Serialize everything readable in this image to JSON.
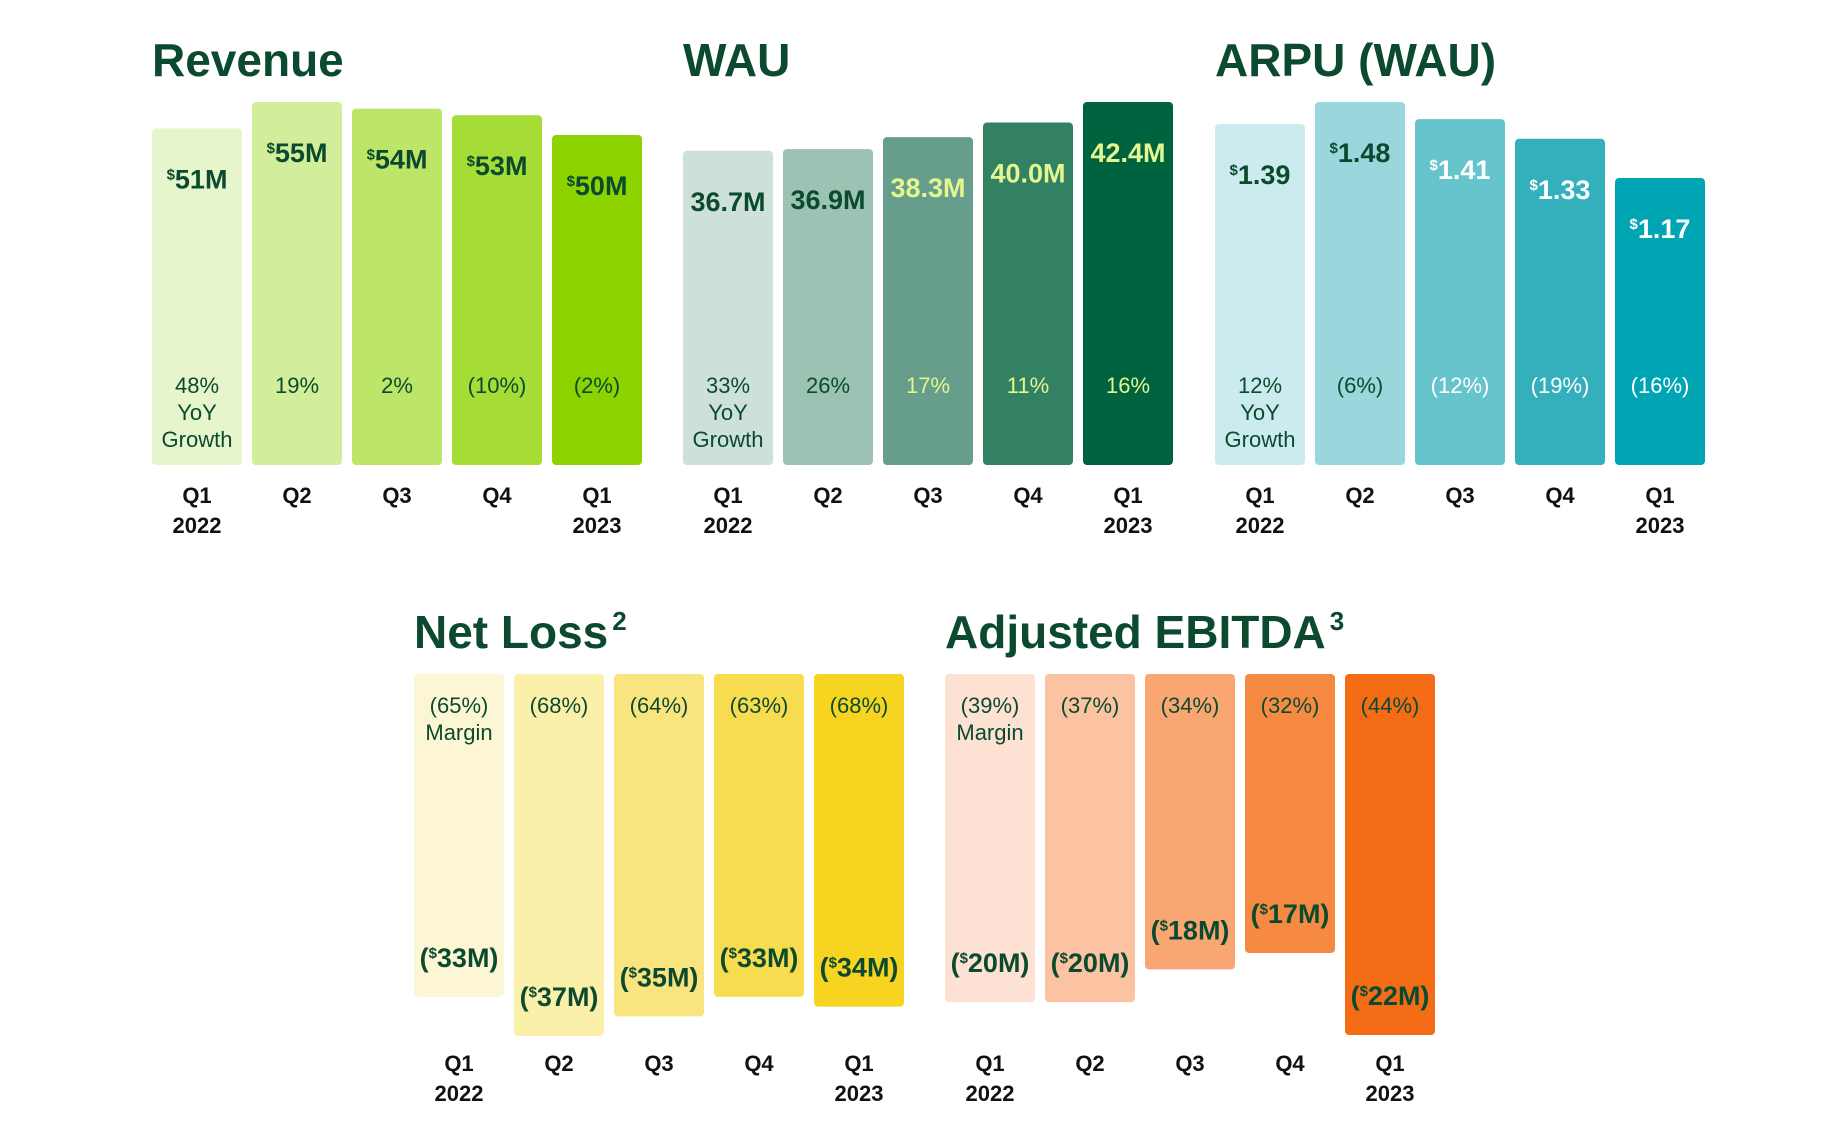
{
  "chart_data": [
    {
      "id": "revenue",
      "type": "bar",
      "title": "Revenue",
      "title_sup": "",
      "categories": [
        [
          "Q1",
          "2022"
        ],
        [
          "Q2",
          ""
        ],
        [
          "Q3",
          ""
        ],
        [
          "Q4",
          ""
        ],
        [
          "Q1",
          "2023"
        ]
      ],
      "series": [
        {
          "name": "Revenue ($M)",
          "values": [
            51,
            55,
            54,
            53,
            50
          ]
        }
      ],
      "value_labels": [
        [
          "$",
          "51M"
        ],
        [
          "$",
          "55M"
        ],
        [
          "$",
          "54M"
        ],
        [
          "$",
          "53M"
        ],
        [
          "$",
          "50M"
        ]
      ],
      "secondary_labels": [
        [
          "48%",
          "YoY",
          "Growth"
        ],
        [
          "19%"
        ],
        [
          "2%"
        ],
        [
          "(10%)"
        ],
        [
          "(2%)"
        ]
      ],
      "secondary_name": "YoY Growth",
      "colors": [
        "#e6f5cc",
        "#d3ee9a",
        "#bde567",
        "#a6dc36",
        "#8dd300"
      ],
      "label_colors": [
        "#0b4a2f",
        "#0b4a2f",
        "#0b4a2f",
        "#0b4a2f",
        "#0b4a2f"
      ],
      "pct_colors": [
        "#0b4a2f",
        "#0b4a2f",
        "#0b4a2f",
        "#0b4a2f",
        "#0b4a2f"
      ],
      "ylim": [
        0,
        55
      ]
    },
    {
      "id": "wau",
      "type": "bar",
      "title": "WAU",
      "title_sup": "",
      "categories": [
        [
          "Q1",
          "2022"
        ],
        [
          "Q2",
          ""
        ],
        [
          "Q3",
          ""
        ],
        [
          "Q4",
          ""
        ],
        [
          "Q1",
          "2023"
        ]
      ],
      "series": [
        {
          "name": "WAU (M)",
          "values": [
            36.7,
            36.9,
            38.3,
            40.0,
            42.4
          ]
        }
      ],
      "value_labels": [
        [
          "",
          "36.7M"
        ],
        [
          "",
          "36.9M"
        ],
        [
          "",
          "38.3M"
        ],
        [
          "",
          "40.0M"
        ],
        [
          "",
          "42.4M"
        ]
      ],
      "secondary_labels": [
        [
          "33%",
          "YoY",
          "Growth"
        ],
        [
          "26%"
        ],
        [
          "17%"
        ],
        [
          "11%"
        ],
        [
          "16%"
        ]
      ],
      "secondary_name": "YoY Growth",
      "colors": [
        "#cde1da",
        "#9bc2b3",
        "#669e8b",
        "#338163",
        "#00633f"
      ],
      "label_colors": [
        "#0b4a2f",
        "#0b4a2f",
        "#e3f68f",
        "#e3f68f",
        "#e3f68f"
      ],
      "pct_colors": [
        "#0b4a2f",
        "#0b4a2f",
        "#e3f68f",
        "#e3f68f",
        "#e3f68f"
      ],
      "ylim": [
        0,
        42.4
      ]
    },
    {
      "id": "arpu",
      "type": "bar",
      "title": "ARPU (WAU)",
      "title_sup": "",
      "categories": [
        [
          "Q1",
          "2022"
        ],
        [
          "Q2",
          ""
        ],
        [
          "Q3",
          ""
        ],
        [
          "Q4",
          ""
        ],
        [
          "Q1",
          "2023"
        ]
      ],
      "series": [
        {
          "name": "ARPU ($)",
          "values": [
            1.39,
            1.48,
            1.41,
            1.33,
            1.17
          ]
        }
      ],
      "value_labels": [
        [
          "$",
          "1.39"
        ],
        [
          "$",
          "1.48"
        ],
        [
          "$",
          "1.41"
        ],
        [
          "$",
          "1.33"
        ],
        [
          "$",
          "1.17"
        ]
      ],
      "secondary_labels": [
        [
          "12%",
          "YoY",
          "Growth"
        ],
        [
          "(6%)"
        ],
        [
          "(12%)"
        ],
        [
          "(19%)"
        ],
        [
          "(16%)"
        ]
      ],
      "secondary_name": "YoY Growth",
      "colors": [
        "#ccebee",
        "#99d7dd",
        "#66c4cd",
        "#33b0bc",
        "#00a5b3"
      ],
      "label_colors": [
        "#0b4a2f",
        "#0b4a2f",
        "#ffffff",
        "#ffffff",
        "#ffffff"
      ],
      "pct_colors": [
        "#0b4a2f",
        "#0b4a2f",
        "#ffffff",
        "#ffffff",
        "#ffffff"
      ],
      "ylim": [
        0,
        1.48
      ]
    },
    {
      "id": "net_loss",
      "type": "bar",
      "title": "Net Loss",
      "title_sup": "2",
      "categories": [
        [
          "Q1",
          "2022"
        ],
        [
          "Q2",
          ""
        ],
        [
          "Q3",
          ""
        ],
        [
          "Q4",
          ""
        ],
        [
          "Q1",
          "2023"
        ]
      ],
      "series": [
        {
          "name": "Net Loss ($M)",
          "values": [
            -33,
            -37,
            -35,
            -33,
            -34
          ]
        }
      ],
      "value_labels": [
        [
          "($",
          "33M)"
        ],
        [
          "($",
          "37M)"
        ],
        [
          "($",
          "35M)"
        ],
        [
          "($",
          "33M)"
        ],
        [
          "($",
          "34M)"
        ]
      ],
      "secondary_labels": [
        [
          "(65%)",
          "Margin"
        ],
        [
          "(68%)"
        ],
        [
          "(64%)"
        ],
        [
          "(63%)"
        ],
        [
          "(68%)"
        ]
      ],
      "secondary_name": "Margin",
      "colors": [
        "#fcf6d4",
        "#fbf0aa",
        "#f9e47f",
        "#f8dc4f",
        "#f6d41f"
      ],
      "label_colors": [
        "#0b4a2f",
        "#0b4a2f",
        "#0b4a2f",
        "#0b4a2f",
        "#0b4a2f"
      ],
      "pct_colors": [
        "#0b4a2f",
        "#0b4a2f",
        "#0b4a2f",
        "#0b4a2f",
        "#0b4a2f"
      ],
      "ylim": [
        -37,
        0
      ]
    },
    {
      "id": "adj_ebitda",
      "type": "bar",
      "title": "Adjusted EBITDA",
      "title_sup": "3",
      "categories": [
        [
          "Q1",
          "2022"
        ],
        [
          "Q2",
          ""
        ],
        [
          "Q3",
          ""
        ],
        [
          "Q4",
          ""
        ],
        [
          "Q1",
          "2023"
        ]
      ],
      "series": [
        {
          "name": "Adjusted EBITDA ($M)",
          "values": [
            -20,
            -20,
            -18,
            -17,
            -22
          ]
        }
      ],
      "value_labels": [
        [
          "($",
          "20M)"
        ],
        [
          "($",
          "20M)"
        ],
        [
          "($",
          "18M)"
        ],
        [
          "($",
          "17M)"
        ],
        [
          "($",
          "22M)"
        ]
      ],
      "secondary_labels": [
        [
          "(39%)",
          "Margin"
        ],
        [
          "(37%)"
        ],
        [
          "(34%)"
        ],
        [
          "(32%)"
        ],
        [
          "(44%)"
        ]
      ],
      "secondary_name": "Margin",
      "colors": [
        "#fde1d2",
        "#fcc3a3",
        "#f9a673",
        "#f78a42",
        "#f56c16"
      ],
      "label_colors": [
        "#0b4a2f",
        "#0b4a2f",
        "#0b4a2f",
        "#0b4a2f",
        "#0b4a2f"
      ],
      "pct_colors": [
        "#0b4a2f",
        "#0b4a2f",
        "#0b4a2f",
        "#0b4a2f",
        "#0b4a2f"
      ],
      "ylim": [
        -22,
        0
      ]
    }
  ]
}
